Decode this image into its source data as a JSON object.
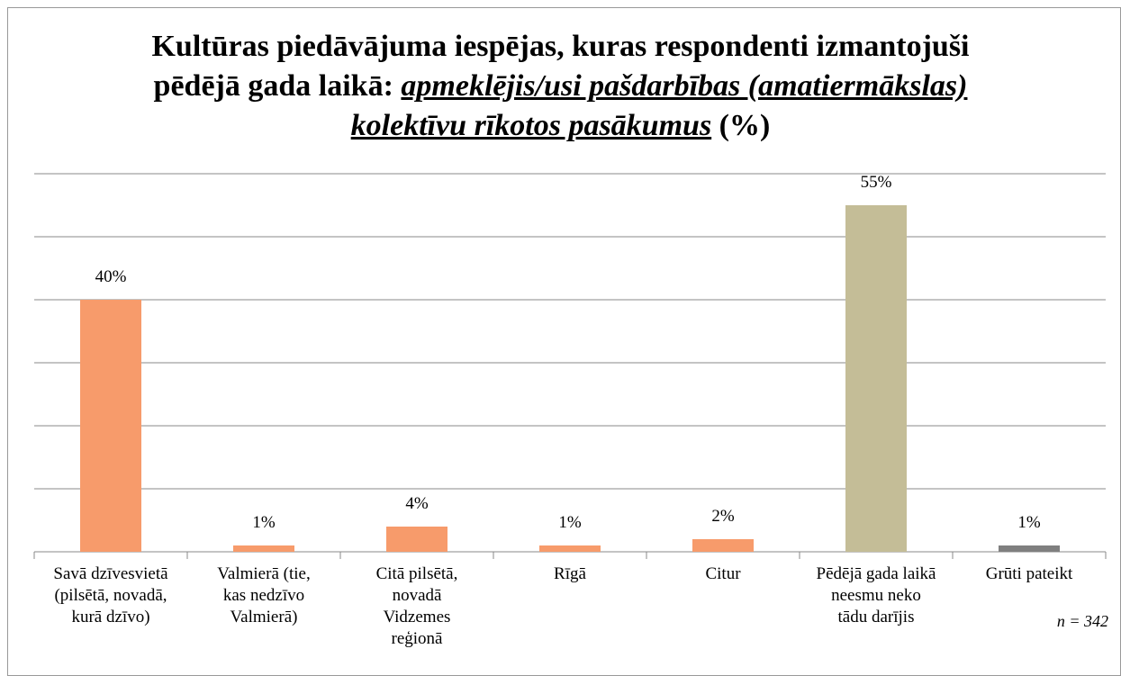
{
  "chart_data": {
    "type": "bar",
    "title": "Kultūras piedāvājuma iespējas, kuras respondenti izmantojuši pēdējā gada laikā:",
    "title_emphasis": "apmeklējis/usi pašdarbības (amatiermākslas) kolektīvu rīkotos pasākumus",
    "title_suffix": "(%)",
    "categories": [
      "Savā dzīvesvietā\n(pilsētā, novadā,\nkurā dzīvo)",
      "Valmierā (tie,\nkas nedzīvo\nValmierā)",
      "Citā pilsētā,\nnovadā\nVidzemes\nreģionā",
      "Rīgā",
      "Citur",
      "Pēdējā gada laikā\nneesmu neko\ntādu darījis",
      "Grūti pateikt"
    ],
    "values": [
      40,
      1,
      4,
      1,
      2,
      55,
      1
    ],
    "value_labels": [
      "40%",
      "1%",
      "4%",
      "1%",
      "2%",
      "55%",
      "1%"
    ],
    "colors": [
      "#f79b6b",
      "#f79b6b",
      "#f79b6b",
      "#f79b6b",
      "#f79b6b",
      "#c4bd97",
      "#7f7f7f"
    ],
    "ylim": [
      0,
      60
    ],
    "yticks": [
      0,
      10,
      20,
      30,
      40,
      50,
      60
    ],
    "grid": true,
    "note": "n = 342"
  }
}
